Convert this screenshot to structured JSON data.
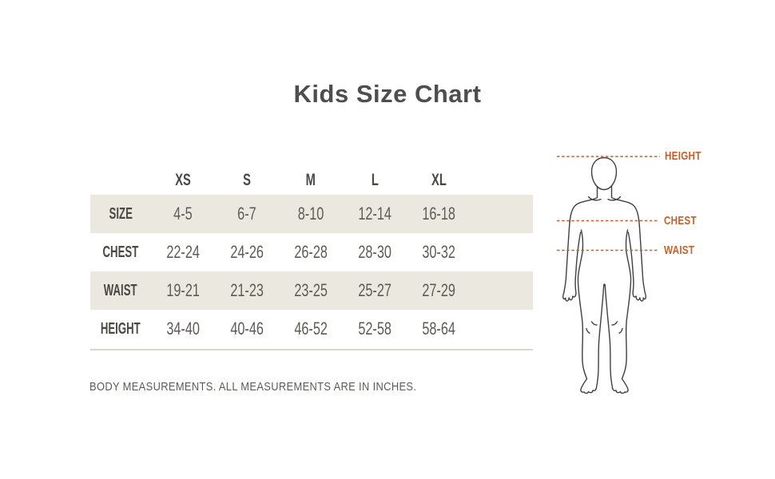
{
  "title": "Kids Size Chart",
  "table": {
    "columns": [
      "XS",
      "S",
      "M",
      "L",
      "XL"
    ],
    "rows": [
      {
        "label": "SIZE",
        "values": [
          "4-5",
          "6-7",
          "8-10",
          "12-14",
          "16-18"
        ]
      },
      {
        "label": "CHEST",
        "values": [
          "22-24",
          "24-26",
          "26-28",
          "28-30",
          "30-32"
        ]
      },
      {
        "label": "WAIST",
        "values": [
          "19-21",
          "21-23",
          "23-25",
          "25-27",
          "27-29"
        ]
      },
      {
        "label": "HEIGHT",
        "values": [
          "34-40",
          "40-46",
          "46-52",
          "52-58",
          "58-64"
        ]
      }
    ]
  },
  "footnote": "BODY MEASUREMENTS. ALL MEASUREMENTS ARE IN INCHES.",
  "figure": {
    "labels": [
      {
        "text": "HEIGHT"
      },
      {
        "text": "CHEST"
      },
      {
        "text": "WAIST"
      }
    ]
  },
  "colors": {
    "accent_orange": "#c96029",
    "row_shade": "#ebe8e0",
    "heading_gray": "#4e4e4e",
    "value_gray": "#5d5b55",
    "label_gray": "#4a4944",
    "figure_line": "#3f3f3f",
    "divider": "#d9d6cd"
  },
  "chart_data": {
    "type": "table",
    "title": "Kids Size Chart",
    "columns": [
      "XS",
      "S",
      "M",
      "L",
      "XL"
    ],
    "rows": [
      {
        "measure": "SIZE",
        "values": [
          "4-5",
          "6-7",
          "8-10",
          "12-14",
          "16-18"
        ]
      },
      {
        "measure": "CHEST",
        "values": [
          "22-24",
          "24-26",
          "26-28",
          "28-30",
          "30-32"
        ]
      },
      {
        "measure": "WAIST",
        "values": [
          "19-21",
          "21-23",
          "23-25",
          "25-27",
          "27-29"
        ]
      },
      {
        "measure": "HEIGHT",
        "values": [
          "34-40",
          "40-46",
          "46-52",
          "52-58",
          "58-64"
        ]
      }
    ],
    "units": "inches",
    "footnote": "BODY MEASUREMENTS. ALL MEASUREMENTS ARE IN INCHES.",
    "annotations": [
      "HEIGHT",
      "CHEST",
      "WAIST"
    ],
    "legend_position": "none",
    "grid": false
  }
}
